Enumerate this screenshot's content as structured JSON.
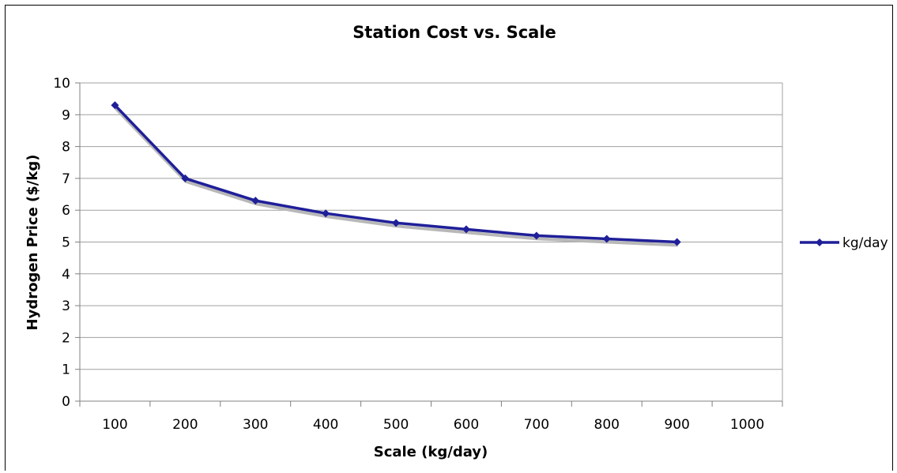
{
  "chart_data": {
    "type": "line",
    "title": "Station Cost vs. Scale",
    "xlabel": "Scale (kg/day)",
    "ylabel": "Hydrogen Price ($/kg)",
    "categories": [
      "100",
      "200",
      "300",
      "400",
      "500",
      "600",
      "700",
      "800",
      "900",
      "1000"
    ],
    "series": [
      {
        "name": "kg/day",
        "values": [
          9.3,
          7.0,
          6.3,
          5.9,
          5.6,
          5.4,
          5.2,
          5.1,
          5.0,
          null
        ]
      }
    ],
    "ylim": [
      0,
      10
    ],
    "yticks": [
      "0",
      "1",
      "2",
      "3",
      "4",
      "5",
      "6",
      "7",
      "8",
      "9",
      "10"
    ],
    "grid": true,
    "legend_position": "right",
    "colors": {
      "line": "#1f1f99",
      "shadow": "#b8b8b8",
      "grid": "#a0a0a0",
      "axis": "#808080"
    }
  }
}
